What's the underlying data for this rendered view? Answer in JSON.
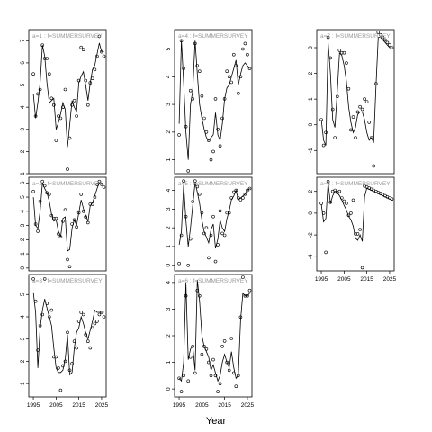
{
  "chart_data": {
    "type": "scatter",
    "xlabel": "Year",
    "x_ticks": [
      1995,
      2005,
      2015,
      2025
    ],
    "xlim": [
      1993,
      2027
    ],
    "point_color": "#000000",
    "line_color": "#000000",
    "label_color": "#999999",
    "panels": [
      {
        "label": "a=1 : f=SUMMERSURVEY",
        "ylim": [
          1,
          7.5
        ],
        "y_ticks": [
          1,
          2,
          3,
          4,
          5,
          6,
          7
        ],
        "years": [
          1995,
          1996,
          1997,
          1998,
          1999,
          2000,
          2001,
          2002,
          2003,
          2004,
          2005,
          2006,
          2007,
          2008,
          2009,
          2010,
          2011,
          2012,
          2013,
          2014,
          2015,
          2016,
          2017,
          2018,
          2019,
          2020,
          2021,
          2022,
          2023,
          2024,
          2025,
          2026
        ],
        "observed": [
          5.5,
          3.6,
          4.6,
          4.8,
          6.8,
          6.2,
          6.2,
          5.5,
          4.4,
          4.1,
          2.5,
          3.6,
          3.5,
          4.0,
          4.8,
          1.2,
          2.6,
          4.1,
          4.3,
          3.6,
          5.2,
          6.7,
          6.6,
          5.2,
          4.1,
          5.1,
          5.3,
          5.7,
          6.3,
          7.2,
          6.5,
          6.3
        ],
        "fitted": [
          4.6,
          3.5,
          4.2,
          5.1,
          6.8,
          6.3,
          5.1,
          4.2,
          4.3,
          4.4,
          3.0,
          3.3,
          3.7,
          4.2,
          3.9,
          2.2,
          3.2,
          4.3,
          4.0,
          3.8,
          5.1,
          5.4,
          5.6,
          5.0,
          4.3,
          5.1,
          5.7,
          5.9,
          6.4,
          6.9,
          6.5,
          6.5
        ]
      },
      {
        "label": "a=2 : f=SUMMERSURVEY",
        "ylim": [
          -0.2,
          6.4
        ],
        "y_ticks": [
          0,
          1,
          2,
          3,
          4,
          5,
          6
        ],
        "years": [
          1995,
          1996,
          1997,
          1998,
          1999,
          2000,
          2001,
          2002,
          2003,
          2004,
          2005,
          2006,
          2007,
          2008,
          2009,
          2010,
          2011,
          2012,
          2013,
          2014,
          2015,
          2016,
          2017,
          2018,
          2019,
          2020,
          2021,
          2022,
          2023,
          2024,
          2025,
          2026
        ],
        "observed": [
          5.4,
          3.1,
          2.6,
          4.7,
          6.1,
          5.8,
          5.3,
          5.2,
          3.7,
          3.5,
          3.5,
          2.4,
          2.2,
          3.3,
          4.1,
          0.6,
          0.1,
          3.1,
          3.4,
          2.9,
          3.9,
          5.2,
          4.0,
          3.6,
          3.2,
          4.5,
          4.5,
          5.0,
          5.9,
          6.1,
          5.9,
          5.7
        ],
        "fitted": [
          5.0,
          3.0,
          2.8,
          4.0,
          6.0,
          5.6,
          5.3,
          4.7,
          3.8,
          3.3,
          3.4,
          2.6,
          2.2,
          3.5,
          3.6,
          1.2,
          1.3,
          2.8,
          3.4,
          3.0,
          3.9,
          4.8,
          4.2,
          3.7,
          3.3,
          4.4,
          4.6,
          5.1,
          5.6,
          6.0,
          5.9,
          5.9
        ]
      },
      {
        "label": "a=3 : f=SUMMERSURVEY",
        "ylim": [
          0.4,
          5.9
        ],
        "y_ticks": [
          1,
          2,
          3,
          4,
          5
        ],
        "years": [
          1995,
          1996,
          1997,
          1998,
          1999,
          2000,
          2001,
          2002,
          2003,
          2004,
          2005,
          2006,
          2007,
          2008,
          2009,
          2010,
          2011,
          2012,
          2013,
          2014,
          2015,
          2016,
          2017,
          2018,
          2019,
          2020,
          2021,
          2022,
          2023,
          2024,
          2025,
          2026
        ],
        "observed": [
          5.7,
          4.7,
          2.5,
          3.6,
          4.1,
          5.7,
          4.6,
          4.0,
          4.3,
          2.2,
          2.2,
          1.7,
          0.7,
          1.8,
          2.0,
          3.3,
          1.6,
          1.9,
          2.9,
          2.6,
          3.8,
          4.2,
          4.1,
          3.2,
          2.9,
          2.6,
          3.5,
          3.7,
          3.8,
          4.1,
          4.2,
          4.0
        ],
        "fitted": [
          5.1,
          4.2,
          1.7,
          3.5,
          4.3,
          4.8,
          4.4,
          4.0,
          3.6,
          2.6,
          1.7,
          1.5,
          1.5,
          1.6,
          2.1,
          3.2,
          1.4,
          1.5,
          2.6,
          3.3,
          3.5,
          4.0,
          3.7,
          3.3,
          3.0,
          3.4,
          3.8,
          4.3,
          4.2,
          4.2,
          4.2,
          4.2
        ]
      },
      {
        "label": "a=4 : f=SUMMERSURVEY",
        "ylim": [
          0.5,
          5.7
        ],
        "y_ticks": [
          1,
          2,
          3,
          4,
          5
        ],
        "years": [
          1995,
          1996,
          1997,
          1998,
          1999,
          2000,
          2001,
          2002,
          2003,
          2004,
          2005,
          2006,
          2007,
          2008,
          2009,
          2010,
          2011,
          2012,
          2013,
          2014,
          2015,
          2016,
          2017,
          2018,
          2019,
          2020,
          2021,
          2022,
          2023,
          2024,
          2025,
          2026
        ],
        "observed": [
          1.9,
          5.3,
          4.3,
          2.2,
          0.6,
          3.5,
          3.2,
          5.2,
          4.4,
          4.2,
          3.3,
          2.5,
          2.0,
          1.7,
          1.0,
          1.3,
          3.2,
          2.1,
          1.5,
          2.5,
          3.2,
          4.2,
          4.0,
          3.8,
          4.8,
          4.4,
          3.4,
          4.0,
          5.0,
          5.2,
          4.8,
          4.3
        ],
        "fitted": [
          2.3,
          5.3,
          3.8,
          2.0,
          1.0,
          3.0,
          3.5,
          5.3,
          4.1,
          3.0,
          2.5,
          2.1,
          1.8,
          1.7,
          1.8,
          1.9,
          2.7,
          1.9,
          1.7,
          2.3,
          3.2,
          3.6,
          3.7,
          4.0,
          4.3,
          4.6,
          3.7,
          4.1,
          4.4,
          4.5,
          4.4,
          4.3
        ]
      },
      {
        "label": "a=5 : f=SUMMERSURVEY",
        "ylim": [
          -0.3,
          4.7
        ],
        "y_ticks": [
          0,
          1,
          2,
          3,
          4
        ],
        "years": [
          1995,
          1996,
          1997,
          1998,
          1999,
          2000,
          2001,
          2002,
          2003,
          2004,
          2005,
          2006,
          2007,
          2008,
          2009,
          2010,
          2011,
          2012,
          2013,
          2014,
          2015,
          2016,
          2017,
          2018,
          2019,
          2020,
          2021,
          2022,
          2023,
          2024,
          2025,
          2026
        ],
        "observed": [
          0.1,
          1.6,
          4.5,
          2.6,
          0.0,
          1.4,
          3.4,
          4.5,
          4.2,
          3.8,
          2.8,
          1.7,
          2.0,
          0.4,
          1.6,
          2.6,
          0.2,
          1.1,
          2.9,
          1.7,
          1.6,
          2.8,
          2.8,
          3.6,
          3.9,
          4.0,
          3.6,
          3.5,
          3.6,
          3.8,
          4.0,
          4.1
        ],
        "fitted": [
          1.1,
          1.8,
          4.3,
          2.4,
          1.0,
          2.0,
          3.2,
          4.4,
          3.9,
          3.3,
          2.4,
          1.8,
          1.5,
          1.2,
          1.9,
          2.2,
          0.9,
          1.4,
          2.4,
          2.0,
          1.8,
          2.5,
          2.9,
          3.5,
          3.7,
          4.0,
          3.5,
          3.6,
          3.7,
          3.8,
          4.0,
          4.1
        ]
      },
      {
        "label": "a=6 : f=SUMMERSURVEY",
        "ylim": [
          -0.3,
          4.3
        ],
        "y_ticks": [
          0,
          1,
          2,
          3,
          4
        ],
        "years": [
          1995,
          1996,
          1997,
          1998,
          1999,
          2000,
          2001,
          2002,
          2003,
          2004,
          2005,
          2006,
          2007,
          2008,
          2009,
          2010,
          2011,
          2012,
          2013,
          2014,
          2015,
          2016,
          2017,
          2018,
          2019,
          2020,
          2021,
          2022,
          2023,
          2024,
          2025,
          2026
        ],
        "observed": [
          0.4,
          -0.1,
          0.5,
          3.5,
          0.3,
          1.2,
          1.6,
          0.6,
          3.7,
          3.5,
          1.3,
          1.6,
          1.5,
          1.0,
          0.5,
          1.1,
          0.5,
          -0.1,
          0.2,
          1.6,
          1.8,
          1.0,
          0.7,
          1.9,
          0.6,
          0.1,
          0.5,
          2.7,
          4.2,
          3.5,
          3.5,
          3.7
        ],
        "fitted": [
          0.4,
          0.3,
          1.0,
          4.0,
          1.1,
          1.5,
          1.6,
          0.7,
          4.1,
          3.3,
          2.0,
          1.6,
          1.4,
          1.2,
          0.7,
          0.9,
          0.6,
          0.3,
          0.5,
          1.0,
          1.3,
          1.0,
          0.8,
          1.4,
          0.8,
          0.4,
          0.5,
          2.6,
          3.6,
          3.5,
          3.5,
          3.6
        ]
      },
      {
        "label": "a=7 : f=SUMMERSURVEY",
        "ylim": [
          -1.9,
          3.7
        ],
        "y_ticks": [
          -1,
          0,
          1,
          2,
          3
        ],
        "years": [
          1995,
          1996,
          1997,
          1998,
          1999,
          2000,
          2001,
          2002,
          2003,
          2004,
          2005,
          2006,
          2007,
          2008,
          2009,
          2010,
          2011,
          2012,
          2013,
          2014,
          2015,
          2016,
          2017,
          2018,
          2019,
          2020,
          2021,
          2022,
          2023,
          2024,
          2025,
          2026
        ],
        "observed": [
          0.2,
          -0.8,
          -0.3,
          3.4,
          2.6,
          0.6,
          -0.5,
          1.1,
          2.9,
          2.8,
          2.8,
          2.4,
          1.4,
          -0.2,
          0.3,
          -0.5,
          0.5,
          0.7,
          0.6,
          1.0,
          0.9,
          0.1,
          -0.5,
          -1.6,
          1.6,
          3.6,
          3.5,
          3.4,
          3.3,
          3.2,
          3.1,
          3.0
        ],
        "fitted": [
          0.2,
          -0.6,
          -0.8,
          3.2,
          2.0,
          0.2,
          -0.1,
          1.3,
          2.8,
          2.7,
          2.3,
          1.7,
          0.7,
          0.1,
          -0.3,
          -0.1,
          0.4,
          0.5,
          0.5,
          0.2,
          -0.3,
          -0.6,
          -0.5,
          -0.7,
          1.5,
          3.4,
          3.4,
          3.3,
          3.2,
          3.1,
          3.0,
          3.0
        ]
      },
      {
        "label": "a=8 : f=SUMMERSURVEY",
        "ylim": [
          -5.3,
          3.3
        ],
        "y_ticks": [
          -4,
          -2,
          0,
          2
        ],
        "years": [
          1995,
          1996,
          1997,
          1998,
          1999,
          2000,
          2001,
          2002,
          2003,
          2004,
          2005,
          2006,
          2007,
          2008,
          2009,
          2010,
          2011,
          2012,
          2013,
          2014,
          2015,
          2016,
          2017,
          2018,
          2019,
          2020,
          2021,
          2022,
          2023,
          2024,
          2025,
          2026
        ],
        "observed": [
          0.9,
          0.0,
          -3.6,
          2.9,
          1.0,
          2.0,
          2.1,
          1.9,
          2.0,
          1.4,
          1.1,
          0.9,
          -0.2,
          0.0,
          1.2,
          -1.9,
          -1.9,
          -1.5,
          -5.0,
          2.5,
          2.4,
          2.3,
          2.2,
          2.1,
          2.0,
          1.9,
          1.8,
          1.7,
          1.6,
          1.5,
          1.4,
          1.3
        ],
        "fitted": [
          0.8,
          -0.8,
          -0.5,
          2.8,
          0.9,
          1.6,
          2.0,
          1.9,
          1.6,
          1.2,
          0.7,
          0.3,
          -0.3,
          -0.6,
          -1.2,
          -2.3,
          -2.5,
          -2.0,
          -2.6,
          1.5,
          2.3,
          2.2,
          2.1,
          2.0,
          1.9,
          1.8,
          1.7,
          1.6,
          1.5,
          1.4,
          1.3,
          1.2
        ]
      }
    ]
  }
}
